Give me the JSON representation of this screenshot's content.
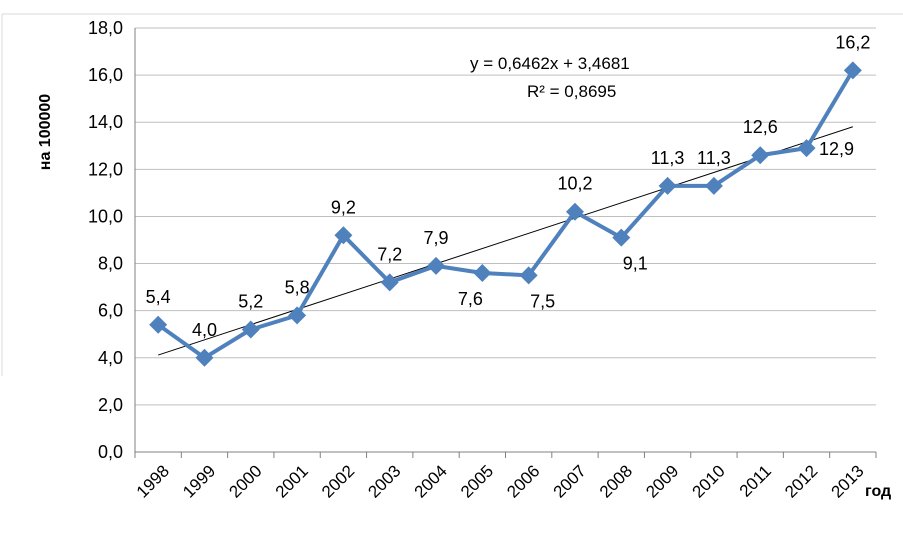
{
  "chart_data": {
    "type": "line",
    "title": "",
    "ylabel": "на 100000",
    "xlabel": "год",
    "ylim": [
      0,
      18
    ],
    "ytick_step": 2,
    "ytick_labels": [
      "0,0",
      "2,0",
      "4,0",
      "6,0",
      "8,0",
      "10,0",
      "12,0",
      "14,0",
      "16,0",
      "18,0"
    ],
    "grid": true,
    "categories": [
      "1998",
      "1999",
      "2000",
      "2001",
      "2002",
      "2003",
      "2004",
      "2005",
      "2006",
      "2007",
      "2008",
      "2009",
      "2010",
      "2011",
      "2012",
      "2013"
    ],
    "values": [
      5.4,
      4.0,
      5.2,
      5.8,
      9.2,
      7.2,
      7.9,
      7.6,
      7.5,
      10.2,
      9.1,
      11.3,
      11.3,
      12.6,
      12.9,
      16.2
    ],
    "value_labels": [
      "5,4",
      "4,0",
      "5,2",
      "5,8",
      "9,2",
      "7,2",
      "7,9",
      "7,6",
      "7,5",
      "10,2",
      "9,1",
      "11,3",
      "11,3",
      "12,6",
      "12,9",
      "16,2"
    ],
    "series_color": "#4f81bd",
    "trendline": {
      "slope": 0.6462,
      "intercept": 3.4681,
      "equation": "y = 0,6462x + 3,4681",
      "r_squared": "R² = 0,8695",
      "color": "#000000"
    }
  }
}
